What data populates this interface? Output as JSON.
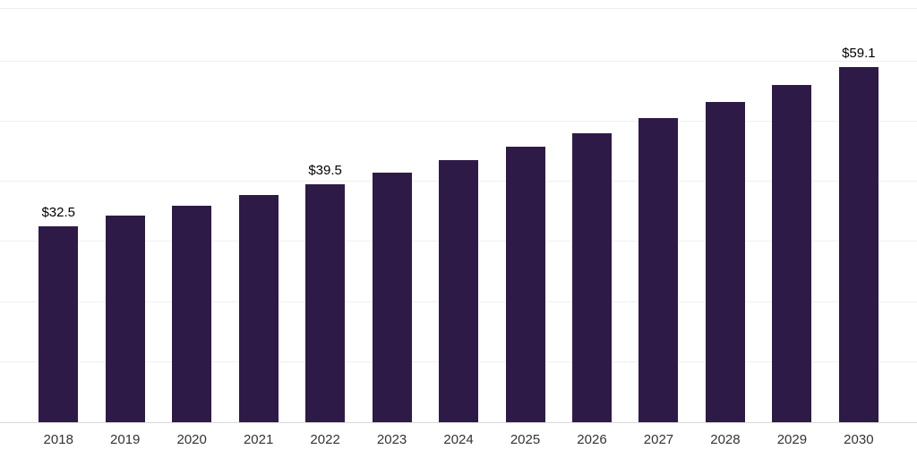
{
  "chart_data": {
    "type": "bar",
    "title": "",
    "xlabel": "",
    "ylabel": "",
    "categories": [
      "2018",
      "2019",
      "2020",
      "2021",
      "2022",
      "2023",
      "2024",
      "2025",
      "2026",
      "2027",
      "2028",
      "2029",
      "2030"
    ],
    "values": [
      32.5,
      34.3,
      36.0,
      37.8,
      39.5,
      41.5,
      43.5,
      45.8,
      48.1,
      50.6,
      53.3,
      56.1,
      59.1
    ],
    "data_labels": [
      "$32.5",
      "",
      "",
      "",
      "$39.5",
      "",
      "",
      "",
      "",
      "",
      "",
      "",
      "$59.1"
    ],
    "ylim": [
      0,
      69
    ],
    "grid": true,
    "gridline_step": 10,
    "legend": "none",
    "colors": {
      "bar": "#2E1A47",
      "gridline": "#F0F0F0",
      "axis_line": "#D9D9D9",
      "data_label": "#000000",
      "tick_label": "#333333",
      "background": "#FFFFFF"
    }
  }
}
